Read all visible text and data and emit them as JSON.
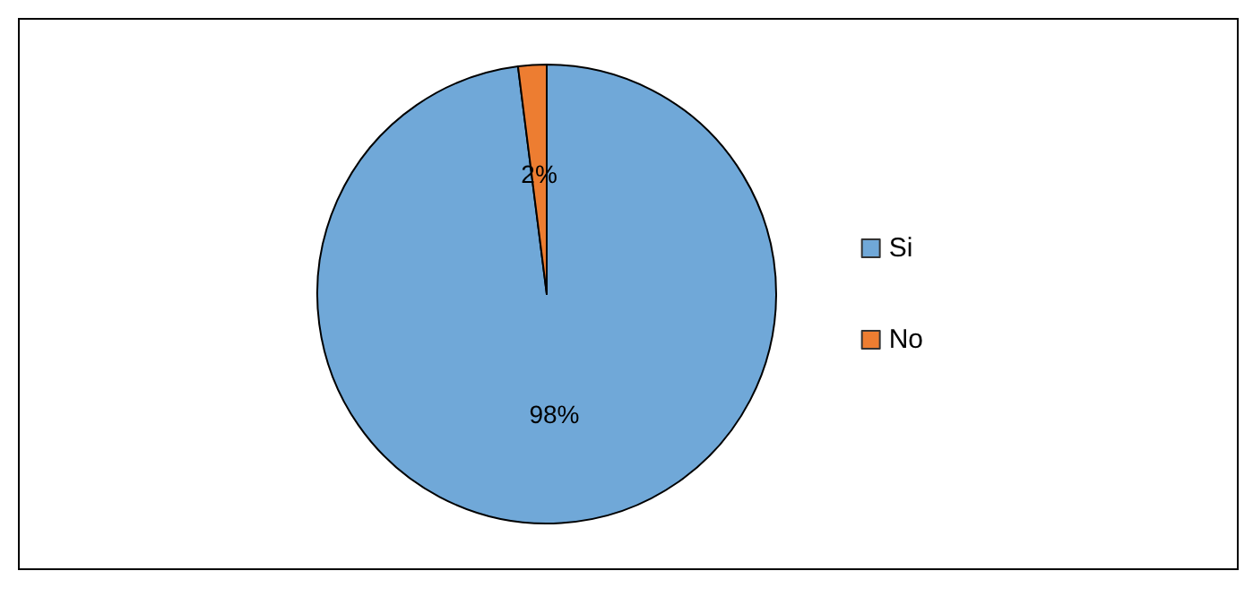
{
  "chart_data": {
    "type": "pie",
    "categories": [
      "Si",
      "No"
    ],
    "values": [
      98,
      2
    ],
    "colors": [
      "#70a8d8",
      "#ed7d31"
    ],
    "value_labels": [
      "98%",
      "2%"
    ],
    "legend": "right"
  }
}
